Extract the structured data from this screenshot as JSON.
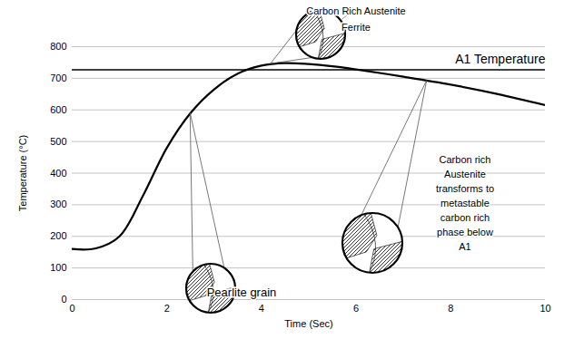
{
  "chart_data": {
    "type": "line",
    "xlabel": "Time (Sec)",
    "ylabel": "Temperature (°C)",
    "xlim": [
      0,
      10
    ],
    "ylim": [
      0,
      800
    ],
    "xticks": [
      0,
      2,
      4,
      6,
      8,
      10
    ],
    "yticks": [
      0,
      100,
      200,
      300,
      400,
      500,
      600,
      700,
      800
    ],
    "grid": true,
    "color": "#000000",
    "x": [
      0,
      0.5,
      1,
      1.5,
      2,
      2.5,
      3,
      3.5,
      4,
      4.5,
      5,
      5.5,
      6,
      7,
      8,
      9,
      10
    ],
    "values": [
      160,
      162,
      200,
      330,
      480,
      590,
      665,
      715,
      740,
      748,
      745,
      738,
      728,
      705,
      680,
      650,
      615
    ],
    "reference_lines": [
      {
        "value": 727,
        "label": "A1 Temperature"
      }
    ],
    "annotations": [
      {
        "texts": [
          "Carbon Rich Austenite",
          "Ferrite"
        ],
        "x": 4.2,
        "y": 745
      },
      {
        "texts": [
          "Pearlite grain"
        ],
        "x": 2.5,
        "y": 590
      },
      {
        "texts": [
          "Carbon rich Austenite transforms to metastable carbon rich phase below A1"
        ],
        "x": 7.5,
        "y": 692
      }
    ]
  }
}
